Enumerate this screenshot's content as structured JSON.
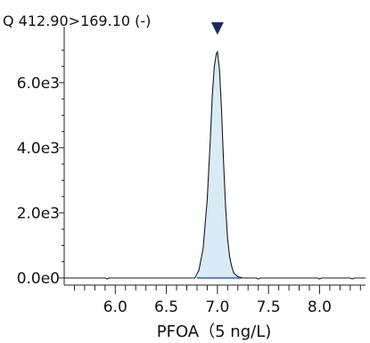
{
  "chart_data": {
    "type": "line",
    "title": "Q 412.90>169.10 (-)",
    "xlabel": "PFOA（5 ng/L)",
    "ylabel": "",
    "xlim": [
      5.5,
      8.45
    ],
    "ylim": [
      -200,
      7500
    ],
    "x_ticks": [
      6.0,
      6.5,
      7.0,
      7.5,
      8.0
    ],
    "x_tick_labels": [
      "6.0",
      "6.5",
      "7.0",
      "7.5",
      "8.0"
    ],
    "y_ticks": [
      0,
      2000,
      4000,
      6000
    ],
    "y_tick_labels": [
      "0.0e0",
      "2.0e3",
      "4.0e3",
      "6.0e3"
    ],
    "series": [
      {
        "x": [
          5.5,
          5.9,
          5.92,
          5.94,
          6.2,
          6.5,
          6.78,
          6.82,
          6.86,
          6.9,
          6.93,
          6.95,
          6.97,
          6.99,
          7.0,
          7.02,
          7.04,
          7.06,
          7.08,
          7.1,
          7.12,
          7.14,
          7.16,
          7.2,
          7.25,
          7.38,
          7.4,
          7.42,
          7.7,
          7.98,
          8.0,
          8.02,
          8.2,
          8.3,
          8.32,
          8.34,
          8.45
        ],
        "y": [
          0,
          0,
          -30,
          0,
          0,
          0,
          0,
          250,
          900,
          2400,
          4200,
          5600,
          6500,
          6900,
          6950,
          6400,
          5200,
          3600,
          2200,
          1200,
          650,
          350,
          150,
          40,
          0,
          0,
          -30,
          0,
          0,
          0,
          -30,
          0,
          0,
          0,
          -30,
          0,
          0
        ]
      }
    ],
    "peak_marker_x": 7.0,
    "peak_area_x_range": [
      6.8,
      7.24
    ],
    "colors": {
      "trace": "#1a1a1a",
      "peak_fill": "#d8ebf6",
      "baseline": "#2f5fd0",
      "marker": "#1b2a57"
    },
    "grid": false
  }
}
